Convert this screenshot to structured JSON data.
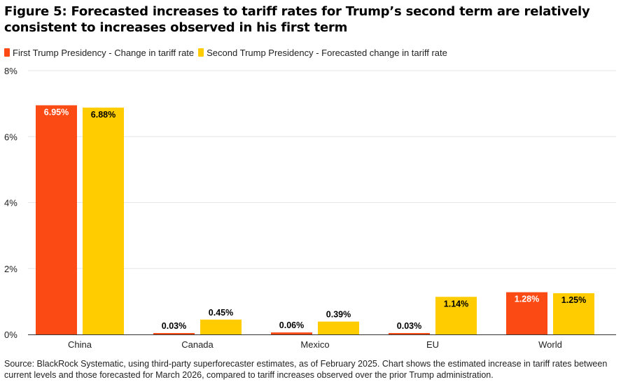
{
  "title": "Figure 5: Forecasted increases to tariff rates for Trump’s second term are relatively consistent to increases observed in his first term",
  "colors": {
    "first": "#fc4a14",
    "second": "#ffcc00",
    "grid": "#e6e6e6",
    "axis": "#333333"
  },
  "legend": [
    {
      "label": "First Trump Presidency - Change in tariff rate",
      "color": "#fc4a14"
    },
    {
      "label": "Second Trump Presidency - Forecasted change in tariff rate",
      "color": "#ffcc00"
    }
  ],
  "chart_data": {
    "type": "bar",
    "title": "Figure 5: Forecasted increases to tariff rates for Trump’s second term are relatively consistent to increases observed in his first term",
    "categories": [
      "China",
      "Canada",
      "Mexico",
      "EU",
      "World"
    ],
    "series": [
      {
        "name": "First Trump Presidency - Change in tariff rate",
        "values": [
          6.95,
          0.03,
          0.06,
          0.03,
          1.28
        ],
        "labels": [
          "6.95%",
          "0.03%",
          "0.06%",
          "0.03%",
          "1.28%"
        ]
      },
      {
        "name": "Second Trump Presidency - Forecasted change in tariff rate",
        "values": [
          6.88,
          0.45,
          0.39,
          1.14,
          1.25
        ],
        "labels": [
          "6.88%",
          "0.45%",
          "0.39%",
          "1.14%",
          "1.25%"
        ]
      }
    ],
    "ylim": [
      0,
      8
    ],
    "yticks": [
      0,
      2,
      4,
      6,
      8
    ],
    "ytick_labels": [
      "0%",
      "2%",
      "4%",
      "6%",
      "8%"
    ],
    "xlabel": "",
    "ylabel": "",
    "grid": true,
    "legend_position": "top-left"
  },
  "source": "Source: BlackRock Systematic, using third-party superforecaster estimates, as of February 2025. Chart shows the estimated increase in tariff rates between current levels and those forecasted for March 2026, compared to tariff increases observed over the prior Trump administration."
}
